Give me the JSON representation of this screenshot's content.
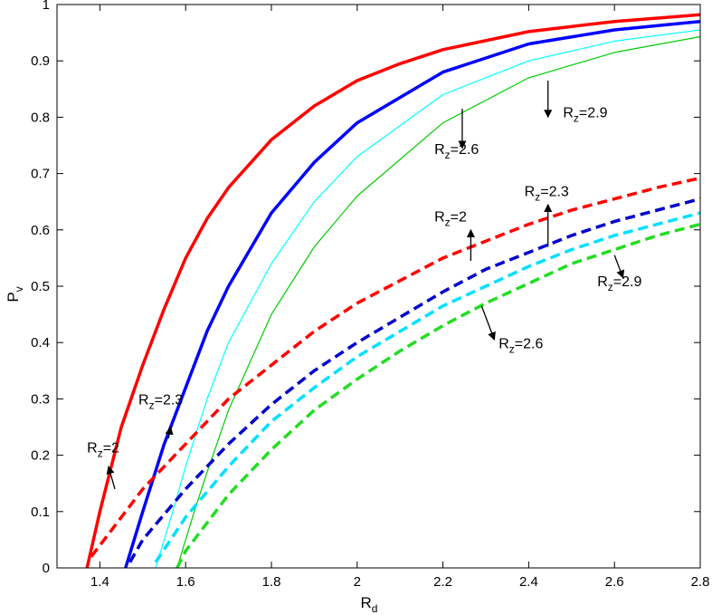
{
  "chart_data": {
    "type": "line",
    "xlabel": "R",
    "xlabel_sub": "d",
    "ylabel": "P",
    "ylabel_sub": "v",
    "xlim": [
      1.3,
      2.8
    ],
    "ylim": [
      0,
      1
    ],
    "xticks": [
      1.4,
      1.6,
      1.8,
      2,
      2.2,
      2.4,
      2.6,
      2.8
    ],
    "xtick_labels": [
      "1.4",
      "1.6",
      "1.8",
      "2",
      "2.2",
      "2.4",
      "2.6",
      "2.8"
    ],
    "yticks": [
      0,
      0.1,
      0.2,
      0.3,
      0.4,
      0.5,
      0.6,
      0.7,
      0.8,
      0.9,
      1
    ],
    "ytick_labels": [
      "0",
      "0.1",
      "0.2",
      "0.3",
      "0.4",
      "0.5",
      "0.6",
      "0.7",
      "0.8",
      "0.9",
      "1"
    ],
    "grid": false,
    "series": [
      {
        "color": "#ff0000",
        "style": "solid",
        "weight": "thick",
        "x": [
          1.37,
          1.4,
          1.45,
          1.5,
          1.55,
          1.6,
          1.65,
          1.7,
          1.8,
          1.9,
          2.0,
          2.1,
          2.2,
          2.4,
          2.6,
          2.8
        ],
        "y": [
          0.0,
          0.1,
          0.25,
          0.36,
          0.46,
          0.55,
          0.62,
          0.675,
          0.76,
          0.82,
          0.865,
          0.895,
          0.92,
          0.952,
          0.97,
          0.982
        ]
      },
      {
        "color": "#0000ff",
        "style": "solid",
        "weight": "thick",
        "x": [
          1.46,
          1.5,
          1.55,
          1.6,
          1.65,
          1.7,
          1.8,
          1.9,
          2.0,
          2.2,
          2.4,
          2.6,
          2.8
        ],
        "y": [
          0.0,
          0.1,
          0.22,
          0.32,
          0.42,
          0.5,
          0.63,
          0.72,
          0.79,
          0.88,
          0.93,
          0.955,
          0.97
        ]
      },
      {
        "color": "#00ffff",
        "style": "solid",
        "weight": "thin",
        "x": [
          1.53,
          1.57,
          1.6,
          1.65,
          1.7,
          1.8,
          1.9,
          2.0,
          2.2,
          2.4,
          2.6,
          2.8
        ],
        "y": [
          0.0,
          0.1,
          0.18,
          0.3,
          0.4,
          0.54,
          0.65,
          0.73,
          0.84,
          0.9,
          0.935,
          0.955
        ]
      },
      {
        "color": "#00cc00",
        "style": "solid",
        "weight": "thin",
        "x": [
          1.58,
          1.62,
          1.65,
          1.7,
          1.8,
          1.9,
          2.0,
          2.2,
          2.4,
          2.6,
          2.8
        ],
        "y": [
          0.0,
          0.1,
          0.17,
          0.28,
          0.45,
          0.57,
          0.66,
          0.79,
          0.87,
          0.915,
          0.943
        ]
      },
      {
        "color": "#ff0000",
        "style": "dashed",
        "weight": "thick",
        "x": [
          1.38,
          1.42,
          1.5,
          1.6,
          1.7,
          1.8,
          1.9,
          2.0,
          2.1,
          2.2,
          2.3,
          2.4,
          2.5,
          2.6,
          2.7,
          2.8
        ],
        "y": [
          0.02,
          0.06,
          0.14,
          0.22,
          0.3,
          0.36,
          0.42,
          0.47,
          0.51,
          0.55,
          0.58,
          0.61,
          0.635,
          0.655,
          0.675,
          0.692
        ]
      },
      {
        "color": "#0000cc",
        "style": "dashed",
        "weight": "thick",
        "x": [
          1.47,
          1.5,
          1.6,
          1.7,
          1.8,
          1.9,
          2.0,
          2.1,
          2.2,
          2.3,
          2.4,
          2.5,
          2.6,
          2.7,
          2.8
        ],
        "y": [
          0.01,
          0.05,
          0.14,
          0.22,
          0.29,
          0.35,
          0.4,
          0.445,
          0.49,
          0.53,
          0.56,
          0.59,
          0.615,
          0.635,
          0.655
        ]
      },
      {
        "color": "#00e0ff",
        "style": "dashed",
        "weight": "thick",
        "x": [
          1.53,
          1.6,
          1.7,
          1.8,
          1.9,
          2.0,
          2.1,
          2.2,
          2.3,
          2.4,
          2.5,
          2.6,
          2.7,
          2.8
        ],
        "y": [
          0.01,
          0.09,
          0.18,
          0.26,
          0.32,
          0.375,
          0.42,
          0.465,
          0.5,
          0.535,
          0.565,
          0.59,
          0.61,
          0.63
        ]
      },
      {
        "color": "#22dd22",
        "style": "dashed",
        "weight": "thick",
        "x": [
          1.58,
          1.6,
          1.7,
          1.8,
          1.9,
          2.0,
          2.1,
          2.2,
          2.3,
          2.4,
          2.5,
          2.6,
          2.7,
          2.8
        ],
        "y": [
          0.0,
          0.03,
          0.13,
          0.21,
          0.28,
          0.335,
          0.385,
          0.43,
          0.47,
          0.505,
          0.54,
          0.565,
          0.59,
          0.61
        ]
      }
    ],
    "annotations": [
      {
        "main": "R",
        "sub": "z",
        "value": "=2",
        "text_x": 1.37,
        "text_y": 0.205,
        "arrow_from": [
          1.435,
          0.14
        ],
        "arrow_to": [
          1.42,
          0.18
        ]
      },
      {
        "main": "R",
        "sub": "z",
        "value": "=2.3",
        "text_x": 1.49,
        "text_y": 0.29,
        "arrow_from": [
          1.56,
          0.23
        ],
        "arrow_to": [
          1.565,
          0.25
        ]
      },
      {
        "main": "R",
        "sub": "z",
        "value": "=2",
        "text_x": 2.18,
        "text_y": 0.615,
        "arrow_from": [
          2.265,
          0.545
        ],
        "arrow_to": [
          2.265,
          0.6
        ]
      },
      {
        "main": "R",
        "sub": "z",
        "value": "=2.3",
        "text_x": 2.39,
        "text_y": 0.66,
        "arrow_from": [
          2.445,
          0.57
        ],
        "arrow_to": [
          2.445,
          0.645
        ]
      },
      {
        "main": "R",
        "sub": "z",
        "value": "=2.9",
        "text_x": 2.56,
        "text_y": 0.5,
        "arrow_from": [
          2.6,
          0.555
        ],
        "arrow_to": [
          2.62,
          0.515
        ]
      },
      {
        "main": "R",
        "sub": "z",
        "value": "=2.6",
        "text_x": 2.33,
        "text_y": 0.39,
        "arrow_from": [
          2.29,
          0.465
        ],
        "arrow_to": [
          2.32,
          0.405
        ]
      },
      {
        "main": "R",
        "sub": "z",
        "value": "=2.6",
        "text_x": 2.18,
        "text_y": 0.735,
        "arrow_from": [
          2.245,
          0.815
        ],
        "arrow_to": [
          2.245,
          0.745
        ]
      },
      {
        "main": "R",
        "sub": "z",
        "value": "=2.9",
        "text_x": 2.48,
        "text_y": 0.8,
        "arrow_from": [
          2.445,
          0.865
        ],
        "arrow_to": [
          2.445,
          0.8
        ]
      }
    ]
  }
}
